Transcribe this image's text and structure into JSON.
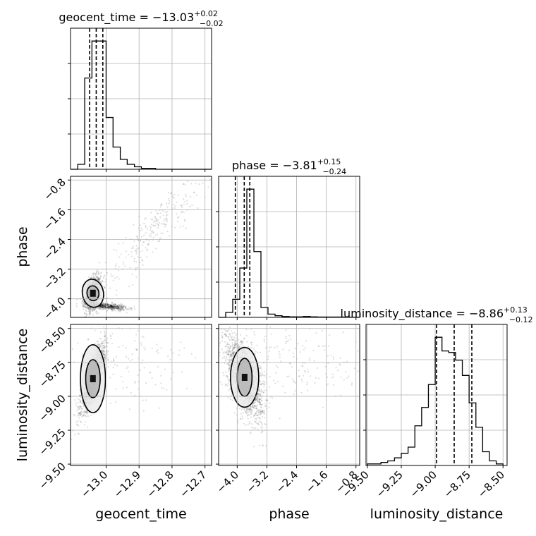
{
  "chart_data": {
    "type": "corner",
    "parameters": [
      "geocent_time",
      "phase",
      "luminosity_distance"
    ],
    "diag_titles": [
      {
        "param": "geocent_time",
        "prefix": "geocent_time = ",
        "value": "−13.03",
        "plus": "+0.02",
        "minus": "−0.02"
      },
      {
        "param": "phase",
        "prefix": "phase = ",
        "value": "−3.81",
        "plus": "+0.15",
        "minus": "−0.24"
      },
      {
        "param": "luminosity_distance",
        "prefix": "luminosity_distance = ",
        "value": "−8.86",
        "plus": "+0.13",
        "minus": "−0.12"
      }
    ],
    "axes": {
      "geocent_time": {
        "label": "geocent_time",
        "range": [
          -13.108,
          -12.68
        ],
        "ticks": [
          -13.0,
          -12.9,
          -12.8,
          -12.7
        ],
        "tick_labels": [
          "−13.0",
          "−12.9",
          "−12.8",
          "−12.7"
        ]
      },
      "phase": {
        "label": "phase",
        "range": [
          -4.5,
          -0.7
        ],
        "ticks": [
          -4.0,
          -3.2,
          -2.4,
          -1.6,
          -0.8
        ],
        "tick_labels": [
          "−4.0",
          "−3.2",
          "−2.4",
          "−1.6",
          "−0.8"
        ]
      },
      "luminosity_distance": {
        "label": "luminosity_distance",
        "range": [
          -9.51,
          -8.47
        ],
        "ticks": [
          -9.5,
          -9.25,
          -9.0,
          -8.75,
          -8.5
        ],
        "tick_labels": [
          "−9.50",
          "−9.25",
          "−9.00",
          "−8.75",
          "−8.50"
        ]
      }
    },
    "histograms": {
      "geocent_time": {
        "bin_edges": [
          -13.108,
          -13.086,
          -13.065,
          -13.043,
          -13.022,
          -13.0,
          -12.979,
          -12.957,
          -12.936,
          -12.914,
          -12.893,
          -12.871,
          -12.85,
          -12.828,
          -12.807,
          -12.785,
          -12.764,
          -12.742,
          -12.721,
          -12.699,
          -12.678
        ],
        "counts": [
          0,
          0.02,
          0.37,
          0.52,
          0.52,
          0.21,
          0.09,
          0.04,
          0.02,
          0.01,
          0.004,
          0.004,
          0,
          0,
          0,
          0,
          0,
          0,
          0,
          0
        ],
        "quantiles": [
          -13.05,
          -13.03,
          -13.01
        ]
      },
      "phase": {
        "bin_edges": [
          -4.5,
          -4.31,
          -4.12,
          -3.93,
          -3.74,
          -3.55,
          -3.36,
          -3.17,
          -2.98,
          -2.79,
          -2.6,
          -2.41,
          -2.22,
          -2.03,
          -1.84,
          -1.65,
          -1.46,
          -1.27,
          -1.08,
          -0.89,
          -0.7
        ],
        "counts": [
          0,
          0.03,
          0.11,
          0.3,
          0.78,
          0.4,
          0.06,
          0.02,
          0.01,
          0.005,
          0.003,
          0.003,
          0.005,
          0.003,
          0.002,
          0.002,
          0.002,
          0.002,
          0.001,
          0.001
        ],
        "quantiles": [
          -4.05,
          -3.81,
          -3.66
        ]
      },
      "luminosity_distance": {
        "bin_edges": [
          -9.5,
          -9.45,
          -9.4,
          -9.35,
          -9.3,
          -9.25,
          -9.2,
          -9.15,
          -9.1,
          -9.05,
          -9.0,
          -8.95,
          -8.9,
          -8.85,
          -8.8,
          -8.75,
          -8.7,
          -8.65,
          -8.6,
          -8.55,
          -8.5
        ],
        "counts": [
          0.01,
          0.01,
          0.02,
          0.03,
          0.05,
          0.08,
          0.12,
          0.26,
          0.38,
          0.53,
          0.84,
          0.75,
          0.74,
          0.69,
          0.59,
          0.41,
          0.25,
          0.09,
          0.03,
          0.01
        ],
        "quantiles": [
          -8.99,
          -8.86,
          -8.73
        ]
      }
    },
    "scatter_panels": [
      {
        "x": "geocent_time",
        "y": "phase",
        "center": [
          -13.04,
          -3.85
        ],
        "clusters": [
          {
            "mean": [
              -13.04,
              -3.85
            ],
            "sd": [
              0.012,
              0.22
            ],
            "rho": 0.3,
            "n": 1400
          },
          {
            "mean": [
              -13.0,
              -4.2
            ],
            "sd": [
              0.03,
              0.05
            ],
            "rho": -0.5,
            "n": 600
          },
          {
            "mean": [
              -12.86,
              -2.2
            ],
            "sd": [
              0.09,
              0.9
            ],
            "rho": 0.93,
            "n": 260
          }
        ],
        "contours": [
          {
            "level": "outer",
            "sd": [
              0.032,
              0.38
            ],
            "angle": -0.18
          },
          {
            "level": "inner",
            "sd": [
              0.018,
              0.2
            ],
            "angle": -0.15
          }
        ]
      },
      {
        "x": "geocent_time",
        "y": "luminosity_distance",
        "center": [
          -13.04,
          -8.87
        ],
        "clusters": [
          {
            "mean": [
              -13.04,
              -8.87
            ],
            "sd": [
              0.018,
              0.12
            ],
            "rho": 0.78,
            "n": 1700
          },
          {
            "mean": [
              -12.93,
              -8.75
            ],
            "sd": [
              0.1,
              0.18
            ],
            "rho": 0.1,
            "n": 140
          }
        ],
        "contours": [
          {
            "level": "outer",
            "sd": [
              0.038,
              0.25
            ],
            "angle": 0.0
          },
          {
            "level": "inner",
            "sd": [
              0.022,
              0.14
            ],
            "angle": 0.0
          }
        ]
      },
      {
        "x": "phase",
        "y": "luminosity_distance",
        "center": [
          -3.8,
          -8.86
        ],
        "clusters": [
          {
            "mean": [
              -3.8,
              -8.86
            ],
            "sd": [
              0.25,
              0.15
            ],
            "rho": -0.55,
            "n": 1800
          },
          {
            "mean": [
              -2.2,
              -8.75
            ],
            "sd": [
              0.9,
              0.15
            ],
            "rho": 0.0,
            "n": 160
          }
        ],
        "contours": [
          {
            "level": "outer",
            "sd": [
              0.38,
              0.22
            ],
            "angle": 0.0
          },
          {
            "level": "inner",
            "sd": [
              0.2,
              0.14
            ],
            "angle": 0.0
          }
        ]
      }
    ],
    "grid": true
  }
}
